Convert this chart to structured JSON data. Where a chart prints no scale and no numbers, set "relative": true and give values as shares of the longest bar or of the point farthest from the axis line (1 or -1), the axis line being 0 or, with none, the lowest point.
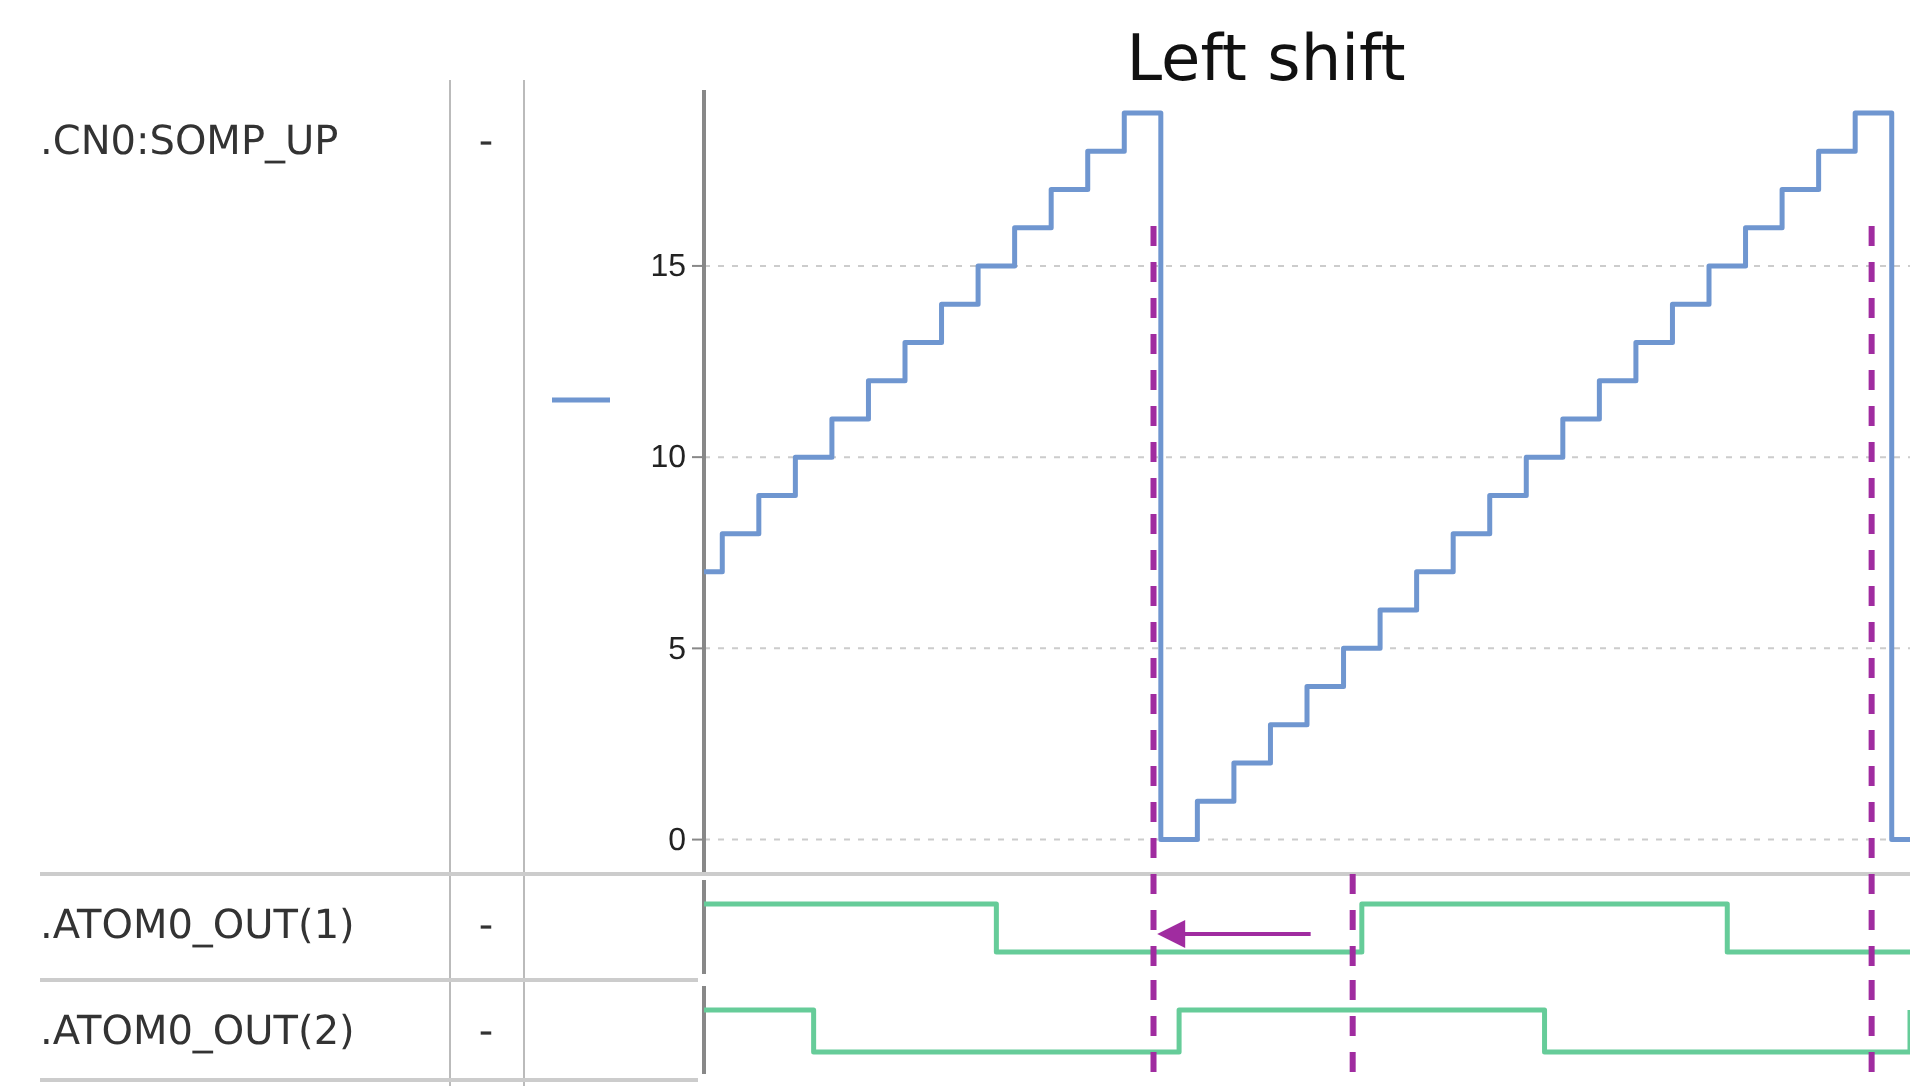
{
  "chart_data": [
    {
      "type": "step",
      "title": "Left shift",
      "categories": [
        null,
        null,
        null,
        null,
        null,
        null,
        null,
        null,
        null,
        null,
        null,
        null,
        null,
        null,
        null,
        null,
        null,
        null,
        null,
        null,
        null,
        null,
        null,
        null,
        null,
        null,
        null,
        null,
        null,
        null,
        null,
        null,
        null,
        null,
        null,
        null,
        null,
        null,
        null,
        null,
        null,
        null,
        null,
        null,
        null,
        null,
        null,
        null,
        null,
        null,
        null,
        null,
        null,
        null,
        null,
        null,
        null,
        null,
        null,
        null,
        null,
        null,
        null,
        null,
        null,
        null,
        null
      ],
      "series": [
        {
          "name": ".CN0:SOMP_UP",
          "color": "#6f96d0",
          "values": [
            7,
            8,
            8,
            9,
            9,
            10,
            10,
            11,
            11,
            12,
            12,
            13,
            13,
            14,
            14,
            15,
            15,
            16,
            16,
            17,
            17,
            18,
            18,
            19,
            19,
            0,
            0,
            1,
            1,
            2,
            2,
            3,
            3,
            4,
            4,
            5,
            5,
            6,
            6,
            7,
            7,
            8,
            8,
            9,
            9,
            10,
            10,
            11,
            11,
            12,
            12,
            13,
            13,
            14,
            14,
            15,
            15,
            16,
            16,
            17,
            17,
            18,
            18,
            19,
            19,
            0,
            0
          ]
        }
      ],
      "ylim": [
        -0.9,
        19.6
      ],
      "yticks": [
        0,
        5,
        10,
        15
      ],
      "grid": "y",
      "tick_labels": "y",
      "annotations": [
        "-"
      ]
    },
    {
      "type": "step",
      "relative": true,
      "categories": [
        null,
        null,
        null,
        null,
        null,
        null,
        null,
        null,
        null,
        null,
        null,
        null,
        null,
        null,
        null,
        null,
        null,
        null,
        null,
        null,
        null,
        null,
        null,
        null,
        null,
        null,
        null,
        null,
        null,
        null,
        null,
        null,
        null,
        null,
        null,
        null,
        null,
        null,
        null,
        null,
        null,
        null,
        null,
        null,
        null,
        null,
        null,
        null,
        null,
        null,
        null,
        null,
        null,
        null,
        null,
        null,
        null,
        null,
        null,
        null,
        null,
        null,
        null,
        null,
        null,
        null,
        null
      ],
      "series": [
        {
          "name": ".ATOM0_OUT(1)",
          "color": "#66cc99",
          "values": [
            1,
            1,
            1,
            1,
            1,
            1,
            1,
            1,
            1,
            1,
            1,
            1,
            1,
            1,
            1,
            1,
            0,
            0,
            0,
            0,
            0,
            0,
            0,
            0,
            0,
            0,
            0,
            0,
            0,
            0,
            0,
            0,
            0,
            0,
            0,
            0,
            1,
            1,
            1,
            1,
            1,
            1,
            1,
            1,
            1,
            1,
            1,
            1,
            1,
            1,
            1,
            1,
            1,
            1,
            1,
            1,
            0,
            0,
            0,
            0,
            0,
            0,
            0,
            0,
            0,
            0,
            0
          ]
        }
      ],
      "tick_labels": false,
      "annotations": [
        "-"
      ]
    },
    {
      "type": "step",
      "relative": true,
      "categories": [
        null,
        null,
        null,
        null,
        null,
        null,
        null,
        null,
        null,
        null,
        null,
        null,
        null,
        null,
        null,
        null,
        null,
        null,
        null,
        null,
        null,
        null,
        null,
        null,
        null,
        null,
        null,
        null,
        null,
        null,
        null,
        null,
        null,
        null,
        null,
        null,
        null,
        null,
        null,
        null,
        null,
        null,
        null,
        null,
        null,
        null,
        null,
        null,
        null,
        null,
        null,
        null,
        null,
        null,
        null,
        null,
        null,
        null,
        null,
        null,
        null,
        null,
        null,
        null,
        null,
        null,
        null
      ],
      "series": [
        {
          "name": ".ATOM0_OUT(2)",
          "color": "#66cc99",
          "values": [
            1,
            1,
            1,
            1,
            1,
            1,
            0,
            0,
            0,
            0,
            0,
            0,
            0,
            0,
            0,
            0,
            0,
            0,
            0,
            0,
            0,
            0,
            0,
            0,
            0,
            0,
            1,
            1,
            1,
            1,
            1,
            1,
            1,
            1,
            1,
            1,
            1,
            1,
            1,
            1,
            1,
            1,
            1,
            1,
            1,
            1,
            0,
            0,
            0,
            0,
            0,
            0,
            0,
            0,
            0,
            0,
            0,
            0,
            0,
            0,
            0,
            0,
            0,
            0,
            0,
            0,
            1
          ]
        }
      ],
      "tick_labels": false,
      "annotations": [
        "-"
      ]
    }
  ]
}
